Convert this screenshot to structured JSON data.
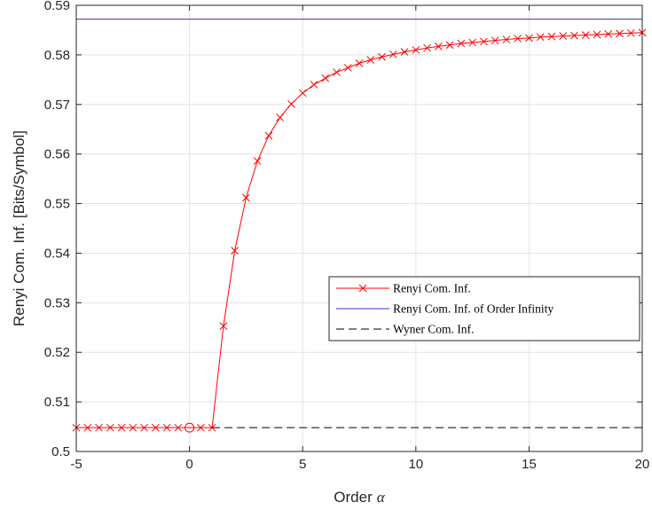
{
  "chart_data": {
    "type": "line",
    "xlabel": "Order",
    "xlabel_symbol": "α",
    "ylabel": "Renyi Com. Inf. [Bits/Symbol]",
    "xlim": [
      -5,
      20
    ],
    "ylim": [
      0.5,
      0.59
    ],
    "xticks": [
      "-5",
      "0",
      "5",
      "10",
      "15",
      "20"
    ],
    "yticks": [
      "0.5",
      "0.51",
      "0.52",
      "0.53",
      "0.54",
      "0.55",
      "0.56",
      "0.57",
      "0.58",
      "0.59"
    ],
    "grid": true,
    "legend_position": "center-right",
    "series": [
      {
        "name": "Renyi Com. Inf.",
        "color": "#ff0000",
        "marker": "x",
        "x": [
          -5,
          -4.5,
          -4,
          -3.5,
          -3,
          -2.5,
          -2,
          -1.5,
          -1,
          -0.5,
          0,
          0.5,
          1,
          1.5,
          2,
          2.5,
          3,
          3.5,
          4,
          4.5,
          5,
          5.5,
          6,
          6.5,
          7,
          7.5,
          8,
          8.5,
          9,
          9.5,
          10,
          10.5,
          11,
          11.5,
          12,
          12.5,
          13,
          13.5,
          14,
          14.5,
          15,
          15.5,
          16,
          16.5,
          17,
          17.5,
          18,
          18.5,
          19,
          19.5,
          20
        ],
        "y": [
          0.5048,
          0.5048,
          0.5048,
          0.5048,
          0.5048,
          0.5048,
          0.5048,
          0.5048,
          0.5048,
          0.5048,
          0.5048,
          0.5048,
          0.5048,
          0.5253,
          0.5405,
          0.5512,
          0.5586,
          0.5637,
          0.5674,
          0.5701,
          0.5723,
          0.574,
          0.5753,
          0.5765,
          0.5774,
          0.5783,
          0.579,
          0.5796,
          0.5801,
          0.5806,
          0.581,
          0.5814,
          0.5817,
          0.582,
          0.5823,
          0.5825,
          0.5827,
          0.5829,
          0.5831,
          0.5833,
          0.5834,
          0.5836,
          0.5837,
          0.5838,
          0.5839,
          0.584,
          0.5841,
          0.5842,
          0.5843,
          0.5844,
          0.5845
        ],
        "special_marker": {
          "x": 0,
          "y": 0.5048,
          "shape": "circle"
        }
      },
      {
        "name": "Renyi Com. Inf. of Order Infinity",
        "color": "#3333cc",
        "style": "solid",
        "x": [
          -5,
          20
        ],
        "y": [
          0.5872,
          0.5872
        ]
      },
      {
        "name": "Wyner Com. Inf.",
        "color": "#000000",
        "style": "dashed",
        "x": [
          1,
          20
        ],
        "y": [
          0.5048,
          0.5048
        ]
      }
    ]
  }
}
